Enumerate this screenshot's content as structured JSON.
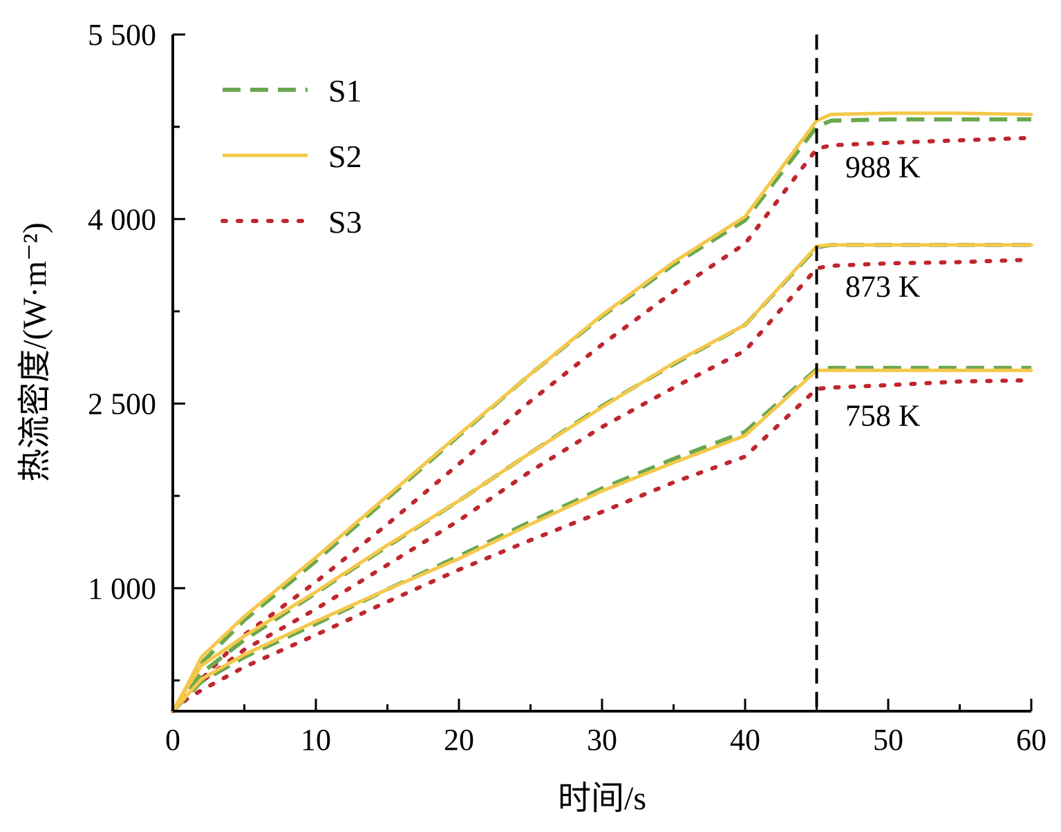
{
  "chart_data": {
    "type": "line",
    "title": "",
    "xlabel": "时间/s",
    "ylabel": "热流密度/(W·m⁻²)",
    "xlim": [
      0,
      60
    ],
    "ylim": [
      0,
      5500
    ],
    "x_ticks": [
      0,
      10,
      20,
      30,
      40,
      50,
      60
    ],
    "x_tick_labels": [
      "0",
      "10",
      "20",
      "30",
      "40",
      "50",
      "60"
    ],
    "y_ticks": [
      1000,
      2500,
      4000,
      5500
    ],
    "y_tick_labels": [
      "1 000",
      "2 500",
      "4 000",
      "5 500"
    ],
    "legend": {
      "position": "top-left",
      "entries": [
        {
          "name": "S1",
          "style": "dashed",
          "color": "#6aa84f"
        },
        {
          "name": "S2",
          "style": "solid",
          "color": "#f5c84a"
        },
        {
          "name": "S3",
          "style": "dotted",
          "color": "#c0262e"
        }
      ]
    },
    "reference_line": {
      "x": 45,
      "style": "dashed",
      "color": "#000000"
    },
    "annotations": [
      {
        "text": "988 K",
        "x": 47.0,
        "y": 4340
      },
      {
        "text": "873 K",
        "x": 47.0,
        "y": 3370
      },
      {
        "text": "758 K",
        "x": 47.0,
        "y": 2320
      }
    ],
    "x": [
      0,
      1,
      2,
      5,
      10,
      15,
      20,
      25,
      30,
      35,
      40,
      45,
      46,
      50,
      55,
      60
    ],
    "series": [
      {
        "name": "S1",
        "group": "988 K",
        "values": [
          0,
          180,
          390,
          740,
          1220,
          1730,
          2240,
          2740,
          3210,
          3630,
          3990,
          4750,
          4800,
          4810,
          4810,
          4810
        ]
      },
      {
        "name": "S2",
        "group": "988 K",
        "values": [
          0,
          210,
          440,
          770,
          1250,
          1750,
          2250,
          2740,
          3220,
          3650,
          4020,
          4800,
          4850,
          4860,
          4860,
          4850
        ]
      },
      {
        "name": "S3",
        "group": "988 K",
        "values": [
          0,
          150,
          260,
          620,
          1050,
          1520,
          2010,
          2520,
          2980,
          3410,
          3800,
          4570,
          4600,
          4620,
          4640,
          4660
        ]
      },
      {
        "name": "S1",
        "group": "873 K",
        "values": [
          0,
          150,
          310,
          580,
          960,
          1340,
          1710,
          2100,
          2480,
          2820,
          3140,
          3770,
          3790,
          3790,
          3790,
          3790
        ]
      },
      {
        "name": "S2",
        "group": "873 K",
        "values": [
          0,
          190,
          370,
          610,
          970,
          1350,
          1710,
          2100,
          2470,
          2830,
          3140,
          3780,
          3790,
          3790,
          3790,
          3790
        ]
      },
      {
        "name": "S3",
        "group": "873 K",
        "values": [
          0,
          120,
          240,
          500,
          830,
          1190,
          1550,
          1950,
          2310,
          2630,
          2930,
          3600,
          3620,
          3640,
          3650,
          3670
        ]
      },
      {
        "name": "S1",
        "group": "758 K",
        "values": [
          0,
          120,
          240,
          440,
          710,
          990,
          1260,
          1540,
          1810,
          2050,
          2270,
          2780,
          2790,
          2790,
          2790,
          2790
        ]
      },
      {
        "name": "S2",
        "group": "758 K",
        "values": [
          0,
          130,
          260,
          460,
          730,
          990,
          1240,
          1520,
          1790,
          2020,
          2240,
          2770,
          2770,
          2770,
          2770,
          2770
        ]
      },
      {
        "name": "S3",
        "group": "758 K",
        "values": [
          0,
          100,
          170,
          360,
          620,
          890,
          1150,
          1390,
          1620,
          1860,
          2070,
          2620,
          2630,
          2650,
          2680,
          2690
        ]
      }
    ]
  }
}
